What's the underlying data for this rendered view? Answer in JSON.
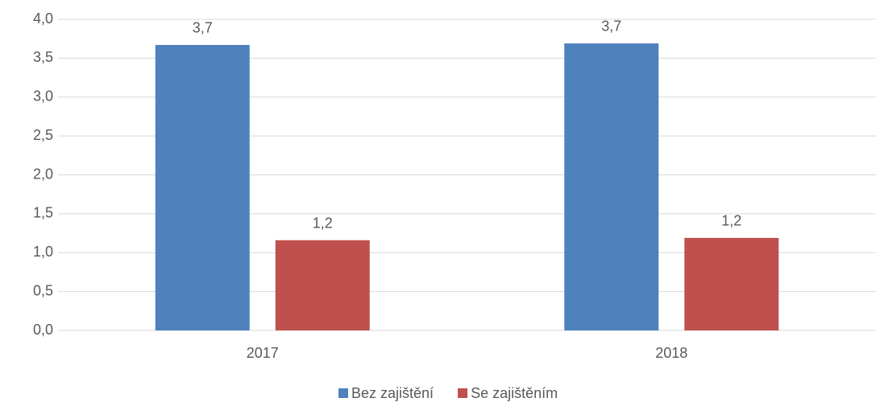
{
  "chart_data": {
    "type": "bar",
    "categories": [
      "2017",
      "2018"
    ],
    "series": [
      {
        "name": "Bez zajištění",
        "color": "#4f81bd",
        "values": [
          3.67,
          3.69
        ],
        "value_labels": [
          "3,7",
          "3,7"
        ]
      },
      {
        "name": "Se zajištěním",
        "color": "#c0504d",
        "values": [
          1.16,
          1.19
        ],
        "value_labels": [
          "1,2",
          "1,2"
        ]
      }
    ],
    "ylim": [
      0,
      4
    ],
    "yticks": [
      {
        "value": 0,
        "label": "0,0"
      },
      {
        "value": 0.5,
        "label": "0,5"
      },
      {
        "value": 1,
        "label": "1,0"
      },
      {
        "value": 1.5,
        "label": "1,5"
      },
      {
        "value": 2,
        "label": "2,0"
      },
      {
        "value": 2.5,
        "label": "2,5"
      },
      {
        "value": 3,
        "label": "3,0"
      },
      {
        "value": 3.5,
        "label": "3,5"
      },
      {
        "value": 4,
        "label": "4,0"
      }
    ],
    "grid": true,
    "legend": "bottom"
  }
}
